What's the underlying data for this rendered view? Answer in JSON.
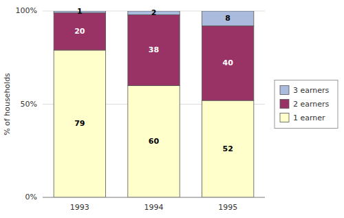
{
  "chart_data": {
    "type": "bar",
    "stacked": true,
    "data_labels": true,
    "grid": true,
    "legend": "right",
    "categories": [
      "1993",
      "1994",
      "1995"
    ],
    "series": [
      {
        "name": "1 earner",
        "color": "#ffffcc",
        "values": [
          79,
          60,
          52
        ]
      },
      {
        "name": "2 earners",
        "color": "#993366",
        "values": [
          20,
          38,
          40
        ]
      },
      {
        "name": "3 earners",
        "color": "#aabbdd",
        "values": [
          1,
          2,
          8
        ]
      }
    ],
    "ylabel": "% of households",
    "ylim": [
      0,
      100
    ],
    "yticks": [
      {
        "value": 0,
        "label": "0%"
      },
      {
        "value": 50,
        "label": "50%"
      },
      {
        "value": 100,
        "label": "100%"
      }
    ]
  }
}
